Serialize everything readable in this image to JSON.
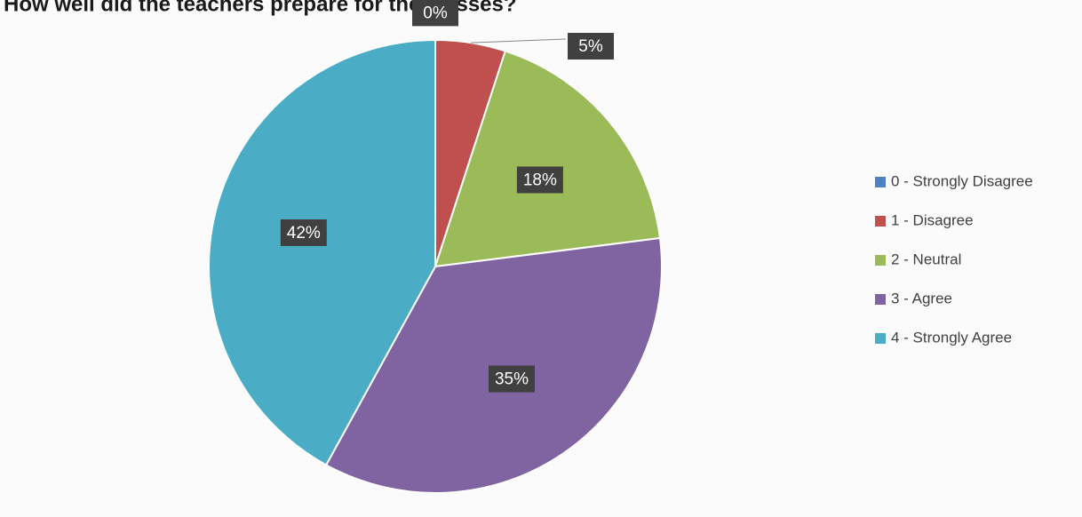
{
  "chart_data": {
    "type": "pie",
    "title": "How well did the teachers prepare for the classes?",
    "categories": [
      "0 - Strongly Disagree",
      "1 - Disagree",
      "2 - Neutral",
      "3 - Agree",
      "4 - Strongly Agree"
    ],
    "values": [
      0,
      5,
      18,
      35,
      42
    ],
    "value_labels": [
      "0%",
      "5%",
      "18%",
      "35%",
      "42%"
    ],
    "colors": [
      "#4f81bd",
      "#c0504d",
      "#9bbb59",
      "#8064a2",
      "#4bacc6"
    ],
    "legend": "right"
  }
}
